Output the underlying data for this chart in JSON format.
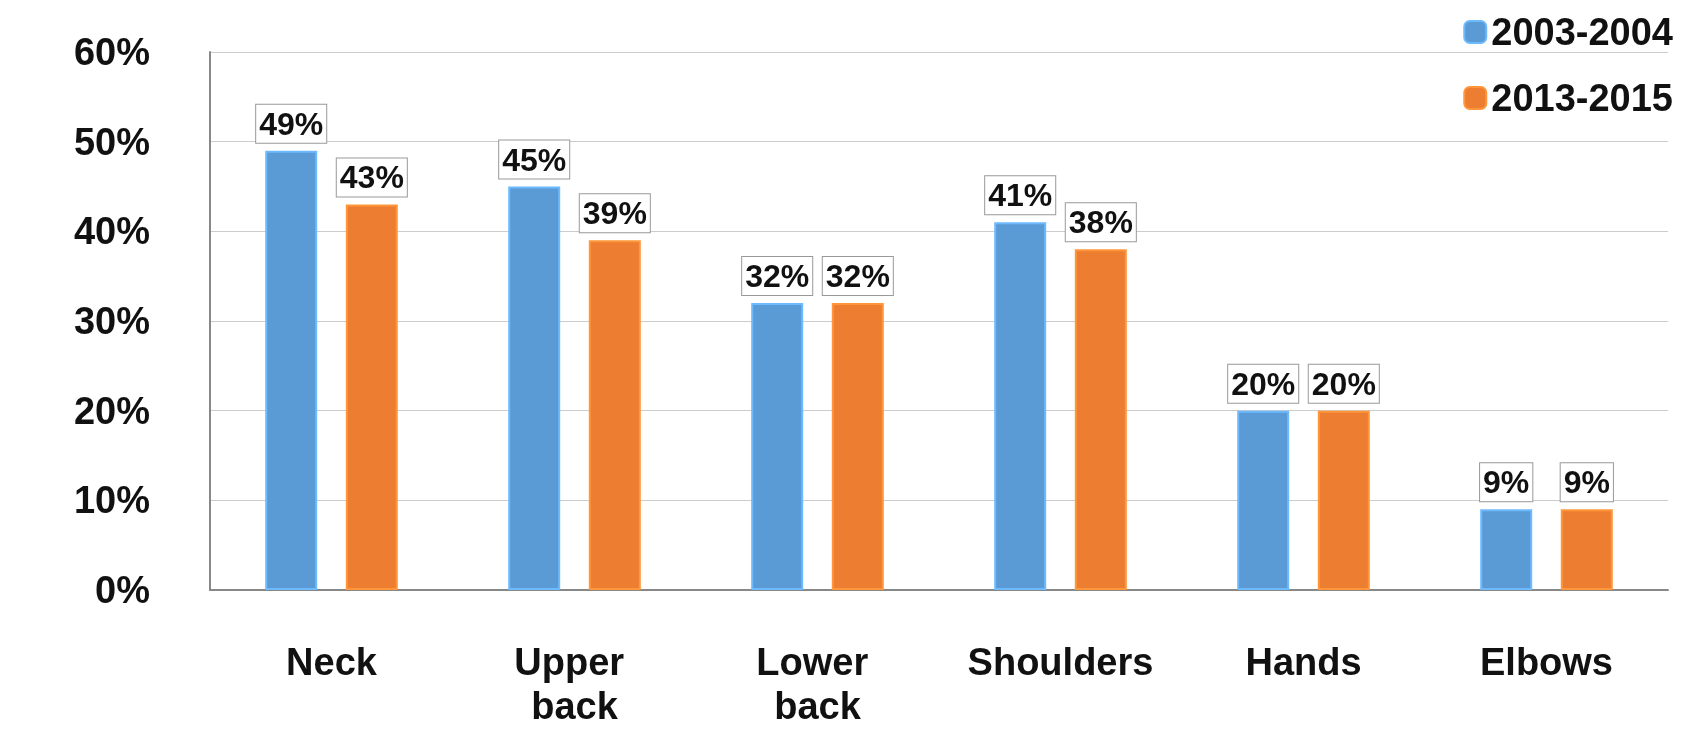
{
  "chart_data": {
    "type": "bar",
    "categories": [
      "Neck",
      "Upper back",
      "Lower back",
      "Shoulders",
      "Hands",
      "Elbows"
    ],
    "series": [
      {
        "name": "2003-2004",
        "color": "#5b9bd5",
        "values": [
          49,
          45,
          32,
          41,
          20,
          9
        ],
        "value_labels": [
          "49%",
          "45%",
          "32%",
          "41%",
          "20%",
          "9%"
        ]
      },
      {
        "name": "2013-2015",
        "color": "#ed7d31",
        "values": [
          43,
          39,
          32,
          38,
          20,
          9
        ],
        "value_labels": [
          "43%",
          "39%",
          "32%",
          "38%",
          "20%",
          "9%"
        ]
      }
    ],
    "ylim": [
      0,
      60
    ],
    "yticks": [
      {
        "value": 0,
        "label": "0%"
      },
      {
        "value": 10,
        "label": "10%"
      },
      {
        "value": 20,
        "label": "20%"
      },
      {
        "value": 30,
        "label": "30%"
      },
      {
        "value": 40,
        "label": "40%"
      },
      {
        "value": 50,
        "label": "50%"
      },
      {
        "value": 60,
        "label": "60%"
      }
    ],
    "grid": "y",
    "legend": "top right"
  }
}
